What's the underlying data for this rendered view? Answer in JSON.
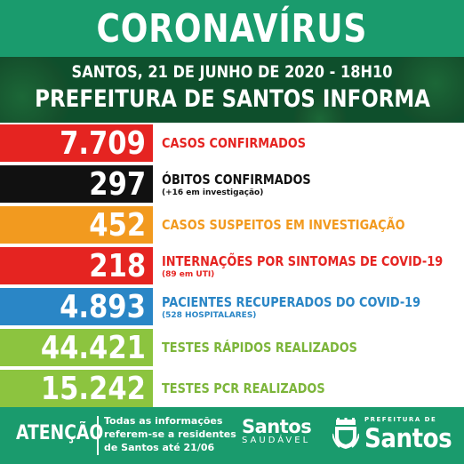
{
  "header": {
    "title": "CORONAVÍRUS",
    "date_line": "SANTOS, 21 DE JUNHO DE 2020 - 18H10",
    "subtitle": "PREFEITURA DE SANTOS INFORMA"
  },
  "stats": [
    {
      "value": "7.709",
      "label": "CASOS CONFIRMADOS",
      "sublabel": "",
      "box_color": "#e52421",
      "label_color": "#e52421"
    },
    {
      "value": "297",
      "label": "ÓBITOS CONFIRMADOS",
      "sublabel": "(+16 em investigação)",
      "box_color": "#111111",
      "label_color": "#111111"
    },
    {
      "value": "452",
      "label": "CASOS SUSPEITOS EM INVESTIGAÇÃO",
      "sublabel": "",
      "box_color": "#f29a1f",
      "label_color": "#f29a1f"
    },
    {
      "value": "218",
      "label": "INTERNAÇÕES POR SINTOMAS DE COVID-19",
      "sublabel": "(89 em UTI)",
      "box_color": "#e52421",
      "label_color": "#e52421"
    },
    {
      "value": "4.893",
      "label": "PACIENTES RECUPERADOS DO COVID-19",
      "sublabel": "(528 HOSPITALARES)",
      "box_color": "#2a86c6",
      "label_color": "#2a86c6"
    },
    {
      "value": "44.421",
      "label": "TESTES RÁPIDOS REALIZADOS",
      "sublabel": "",
      "box_color": "#8cc43f",
      "label_color": "#7cb53a"
    },
    {
      "value": "15.242",
      "label": "TESTES PCR REALIZADOS",
      "sublabel": "",
      "box_color": "#8cc43f",
      "label_color": "#7cb53a"
    }
  ],
  "footer": {
    "attention": "ATENÇÃO",
    "note_line1": "Todas as informações",
    "note_line2": "referem-se a residentes",
    "note_line3": "de Santos até 21/06",
    "logo1_top": "Santos",
    "logo1_bottom": "SAUDÁVEL",
    "logo2_small": "PREFEITURA DE",
    "logo2_big": "Santos"
  },
  "colors": {
    "header_green": "#1a9b6d",
    "header_dark": "#0e4f2c"
  }
}
